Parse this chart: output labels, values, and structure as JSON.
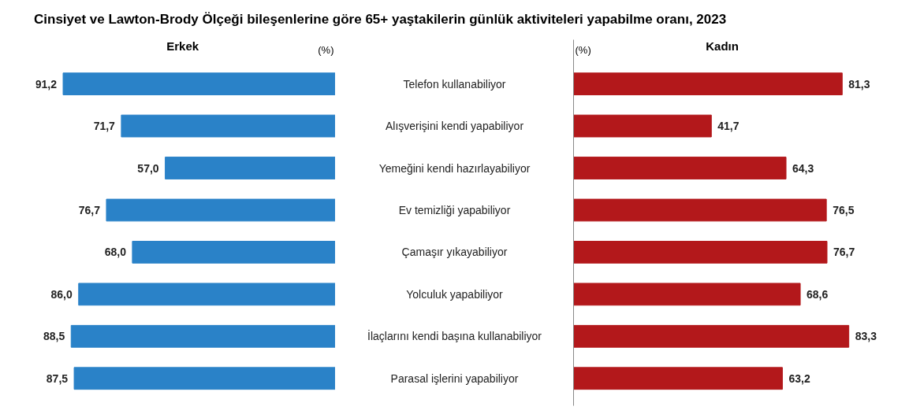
{
  "chart_data": [
    {
      "type": "bar",
      "orientation": "horizontal",
      "title": "Cinsiyet ve Lawton-Brody Ölçeği bileşenlerine göre 65+ yaştakilerin günlük aktiviteleri yapabilme oranı, 2023",
      "subtitle": "Erkek",
      "annotations": [
        "(%)"
      ],
      "categories": [
        "Telefon kullanabiliyor",
        "Alışverişini kendi yapabiliyor",
        "Yemeğini kendi hazırlayabiliyor",
        "Ev temizliği yapabiliyor",
        "Çamaşır yıkayabiliyor",
        "Yolculuk yapabiliyor",
        "İlaçlarını kendi başına kullanabiliyor",
        "Parasal işlerini yapabiliyor"
      ],
      "values": [
        91.2,
        71.7,
        57.0,
        76.7,
        68.0,
        86.0,
        88.5,
        87.5
      ],
      "value_labels": [
        "91,2",
        "71,7",
        "57,0",
        "76,7",
        "68,0",
        "86,0",
        "88,5",
        "87,5"
      ],
      "color": "#2a82c8"
    },
    {
      "type": "bar",
      "orientation": "horizontal",
      "subtitle": "Kadın",
      "annotations": [
        "(%)"
      ],
      "values": [
        81.3,
        41.7,
        64.3,
        76.5,
        76.7,
        68.6,
        83.3,
        63.2
      ],
      "value_labels": [
        "81,3",
        "41,7",
        "64,3",
        "76,5",
        "76,7",
        "68,6",
        "83,3",
        "63,2"
      ],
      "color": "#b3181b"
    }
  ]
}
